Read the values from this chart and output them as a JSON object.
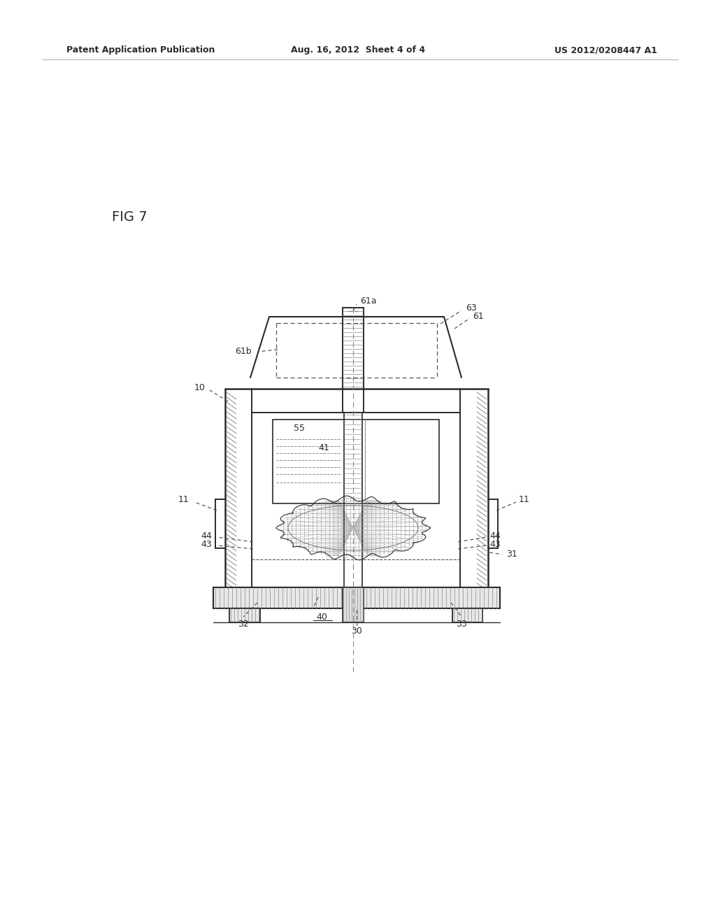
{
  "bg_color": "#ffffff",
  "line_color": "#2a2a2a",
  "header_left": "Patent Application Publication",
  "header_mid": "Aug. 16, 2012  Sheet 4 of 4",
  "header_right": "US 2012/0208447 A1",
  "fig_label": "FIG 7",
  "hatch_color": "#555555"
}
